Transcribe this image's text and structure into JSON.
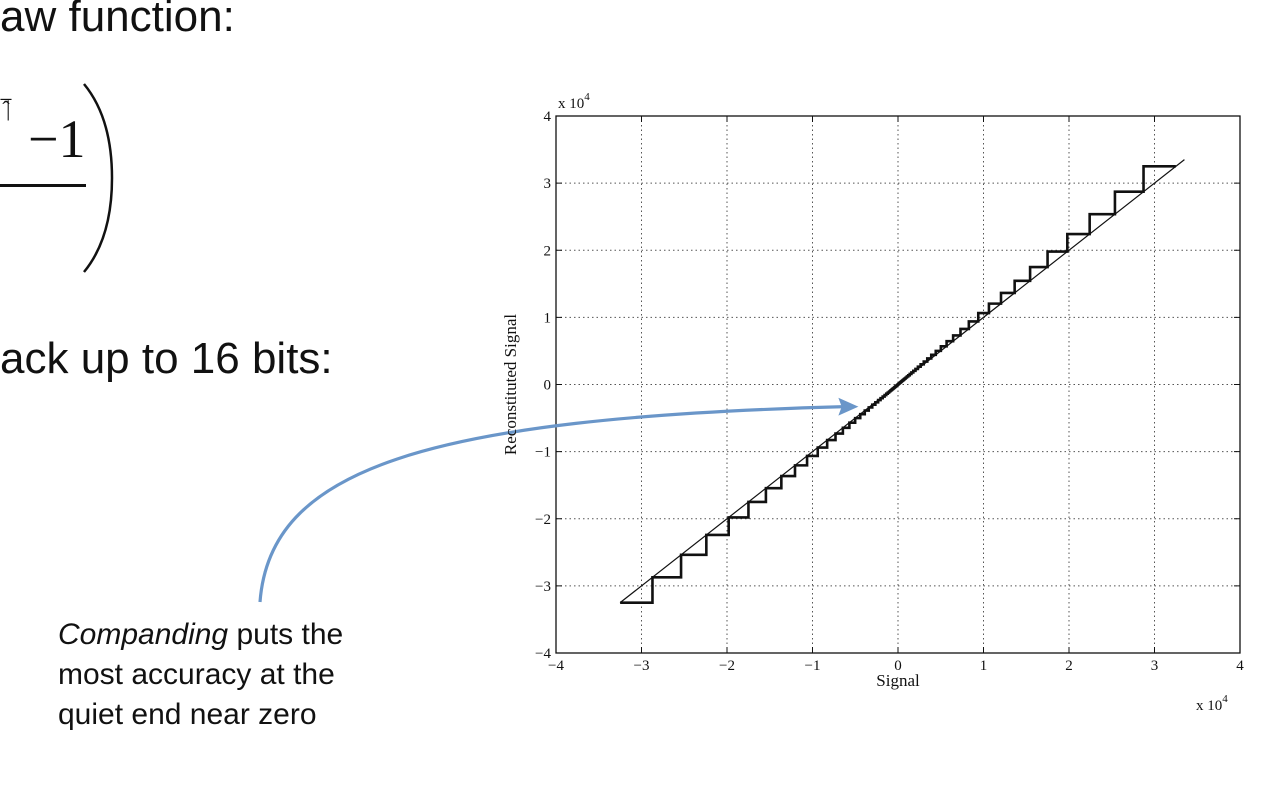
{
  "slide": {
    "heading_fragment": "aw function:",
    "bits_fragment": "ack up to 16 bits:",
    "equation": {
      "exponent_fragment": "̂̅|",
      "minus_one": "−1"
    },
    "caption": {
      "emphasis": "Companding",
      "line1_rest": " puts the",
      "line2": "most accuracy at the",
      "line3": "quiet end near zero"
    }
  },
  "chart_data": {
    "type": "line",
    "xlabel": "Signal",
    "ylabel": "Reconstituted Signal",
    "x_multiplier_label": "x 10",
    "y_multiplier_label": "x 10",
    "multiplier_exponent": "4",
    "xlim": [
      -4,
      4
    ],
    "ylim": [
      -4,
      4
    ],
    "x_ticks": [
      -4,
      -3,
      -2,
      -1,
      0,
      1,
      2,
      3,
      4
    ],
    "y_ticks": [
      -4,
      -3,
      -2,
      -1,
      0,
      1,
      2,
      3,
      4
    ],
    "x_tick_labels": [
      "−4",
      "−3",
      "−2",
      "−1",
      "0",
      "1",
      "2",
      "3",
      "4"
    ],
    "y_tick_labels": [
      "−4",
      "−3",
      "−2",
      "−1",
      "0",
      "1",
      "2",
      "3",
      "4"
    ],
    "grid": true,
    "series": [
      {
        "style": "thin-line",
        "x": [
          -3.25,
          3.35
        ],
        "y": [
          -3.25,
          3.35
        ]
      },
      {
        "style": "staircase",
        "x_range": [
          -3.25,
          3.25
        ],
        "step_count": 90,
        "quantization": "mu-law"
      }
    ],
    "annotation_arrow": {
      "color": "#6a96c9",
      "points_to": [
        -0.5,
        -0.33
      ]
    }
  }
}
